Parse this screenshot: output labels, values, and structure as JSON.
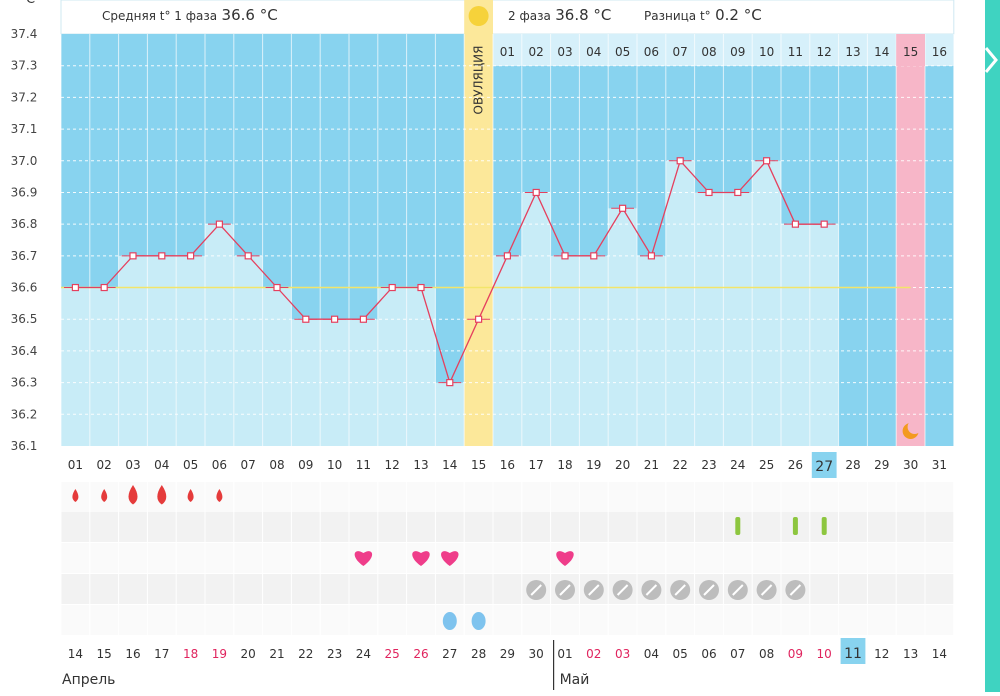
{
  "header": {
    "unit": "C",
    "phase1_label": "Средняя t° 1 фаза",
    "phase1_value": "36.6 °C",
    "phase2_label": "2 фаза",
    "phase2_value": "36.8 °C",
    "diff_label": "Разница t°",
    "diff_value": "0.2 °C"
  },
  "ovulation_label": "ОВУЛЯЦИЯ",
  "colors": {
    "background_blue": "#88d3ef",
    "bar_light": "#c8ecf7",
    "ovulation_yellow": "#fce89a",
    "period_pink": "#f7b6c8",
    "line_red": "#e5405e",
    "average_line": "#f3e56a",
    "drop_red": "#e53b3b",
    "heart_pink": "#ef3d8a",
    "pill_gray": "#bdbdbd",
    "green_mark": "#8dc63f",
    "blue_drop": "#7ec3ee",
    "moon_orange": "#f39a1f",
    "sun_yellow": "#f6d23a"
  },
  "chart_data": {
    "type": "line",
    "ylabel": "C",
    "ylim": [
      36.1,
      37.4
    ],
    "y_ticks": [
      "37.4",
      "37.3",
      "37.2",
      "37.1",
      "37.0",
      "36.9",
      "36.8",
      "36.7",
      "36.6",
      "36.5",
      "36.4",
      "36.3",
      "36.2",
      "36.1"
    ],
    "cycle_days": [
      "01",
      "02",
      "03",
      "04",
      "05",
      "06",
      "07",
      "08",
      "09",
      "10",
      "11",
      "12",
      "13",
      "14",
      "15",
      "16",
      "17",
      "18",
      "19",
      "20",
      "21",
      "22",
      "23",
      "24",
      "25",
      "26",
      "27",
      "28",
      "29",
      "30",
      "31"
    ],
    "current_cycle_day": "27",
    "phase2_days": [
      "01",
      "02",
      "03",
      "04",
      "05",
      "06",
      "07",
      "08",
      "09",
      "10",
      "11",
      "12",
      "13",
      "14",
      "15",
      "16"
    ],
    "highlighted_phase2_day": "15",
    "series": [
      {
        "values": [
          36.6,
          36.6,
          36.7,
          36.7,
          36.7,
          36.8,
          36.7,
          36.6,
          36.5,
          36.5,
          36.5,
          36.6,
          36.6,
          36.3,
          36.5,
          36.7,
          36.9,
          36.7,
          36.7,
          36.85,
          36.7,
          37.0,
          36.9,
          36.9,
          37.0,
          36.8,
          36.8
        ]
      }
    ],
    "average_phase1": 36.6,
    "ovulation_day": 15,
    "period_marker_day": 30
  },
  "symbols": {
    "period_drops": [
      {
        "day": 1,
        "size": "small"
      },
      {
        "day": 2,
        "size": "small"
      },
      {
        "day": 3,
        "size": "large"
      },
      {
        "day": 4,
        "size": "large"
      },
      {
        "day": 5,
        "size": "small"
      },
      {
        "day": 6,
        "size": "small"
      }
    ],
    "green_marks": [
      24,
      26,
      27
    ],
    "hearts": [
      11,
      13,
      14,
      18
    ],
    "pills": [
      17,
      18,
      19,
      20,
      21,
      22,
      23,
      24,
      25,
      26
    ],
    "blue_drops": [
      14,
      15
    ]
  },
  "calendar": {
    "dates": [
      "14",
      "15",
      "16",
      "17",
      "18",
      "19",
      "20",
      "21",
      "22",
      "23",
      "24",
      "25",
      "26",
      "27",
      "28",
      "29",
      "30",
      "01",
      "02",
      "03",
      "04",
      "05",
      "06",
      "07",
      "08",
      "09",
      "10",
      "11",
      "12",
      "13",
      "14"
    ],
    "red_dates": [
      4,
      5,
      11,
      12,
      18,
      19,
      25,
      26
    ],
    "today_index": 27,
    "month1": "Апрель",
    "month2": "Май",
    "month2_start_index": 18
  }
}
